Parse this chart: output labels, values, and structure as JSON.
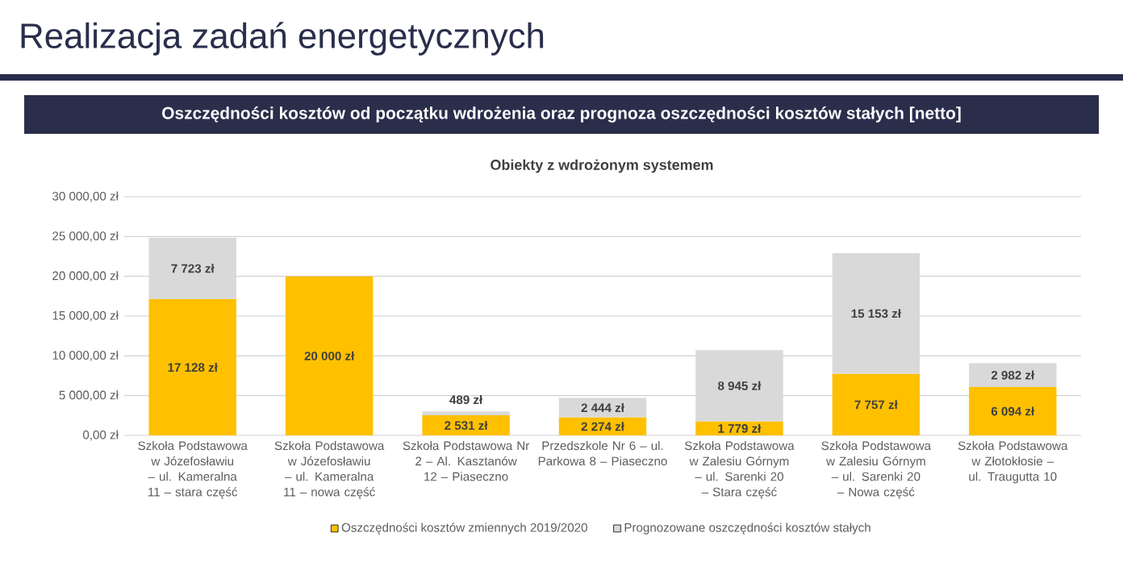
{
  "chart_data": {
    "type": "bar",
    "title": "Realizacja zadań energetycznych",
    "subtitle": "Oszczędności kosztów od początku wdrożenia oraz prognoza oszczędności kosztów stałych [netto]",
    "annotations": [
      "Obiekty z wdrożonym systemem"
    ],
    "categories": [
      "Szkoła Podstawowa w Józefosławiu – ul. Kameralna 11 – stara część",
      "Szkoła Podstawowa w Józefosławiu – ul. Kameralna 11 – nowa część",
      "Szkoła Podstawowa Nr 2 – Al. Kasztanów 12 – Piaseczno",
      "Przedszkole Nr 6 – ul. Parkowa 8 – Piaseczno",
      "Szkoła Podstawowa w Zalesiu Górnym – ul. Sarenki 20 – Stara część",
      "Szkoła Podstawowa w Zalesiu Górnym – ul. Sarenki 20 – Nowa część",
      "Szkoła Podstawowa w Złotokłosie – ul. Traugutta 10"
    ],
    "stacked": true,
    "series": [
      {
        "name": "Oszczędności kosztów zmiennych 2019/2020",
        "color": "#ffc000",
        "values": [
          17128,
          20000,
          2531,
          2274,
          1779,
          7757,
          6094
        ],
        "value_labels": [
          "17 128 zł",
          "20 000 zł",
          "2 531 zł",
          "2 274 zł",
          "1 779 zł",
          "7 757 zł",
          "6 094 zł"
        ]
      },
      {
        "name": "Prognozowane oszczędności kosztów stałych",
        "color": "#d9d9d9",
        "values": [
          7723,
          null,
          489,
          2444,
          8945,
          15153,
          2982
        ],
        "value_labels": [
          "7 723 zł",
          null,
          "489 zł",
          "2 444 zł",
          "8 945 zł",
          "15 153 zł",
          "2 982 zł"
        ]
      }
    ],
    "ylim": [
      0,
      30000
    ],
    "yticks": [
      {
        "value": 0,
        "label": "0,00 zł"
      },
      {
        "value": 5000,
        "label": "5 000,00 zł"
      },
      {
        "value": 10000,
        "label": "10 000,00 zł"
      },
      {
        "value": 15000,
        "label": "15 000,00 zł"
      },
      {
        "value": 20000,
        "label": "20 000,00 zł"
      },
      {
        "value": 25000,
        "label": "25 000,00 zł"
      },
      {
        "value": 30000,
        "label": "30 000,00 zł"
      }
    ],
    "grid": "y",
    "legend": "bottom"
  }
}
